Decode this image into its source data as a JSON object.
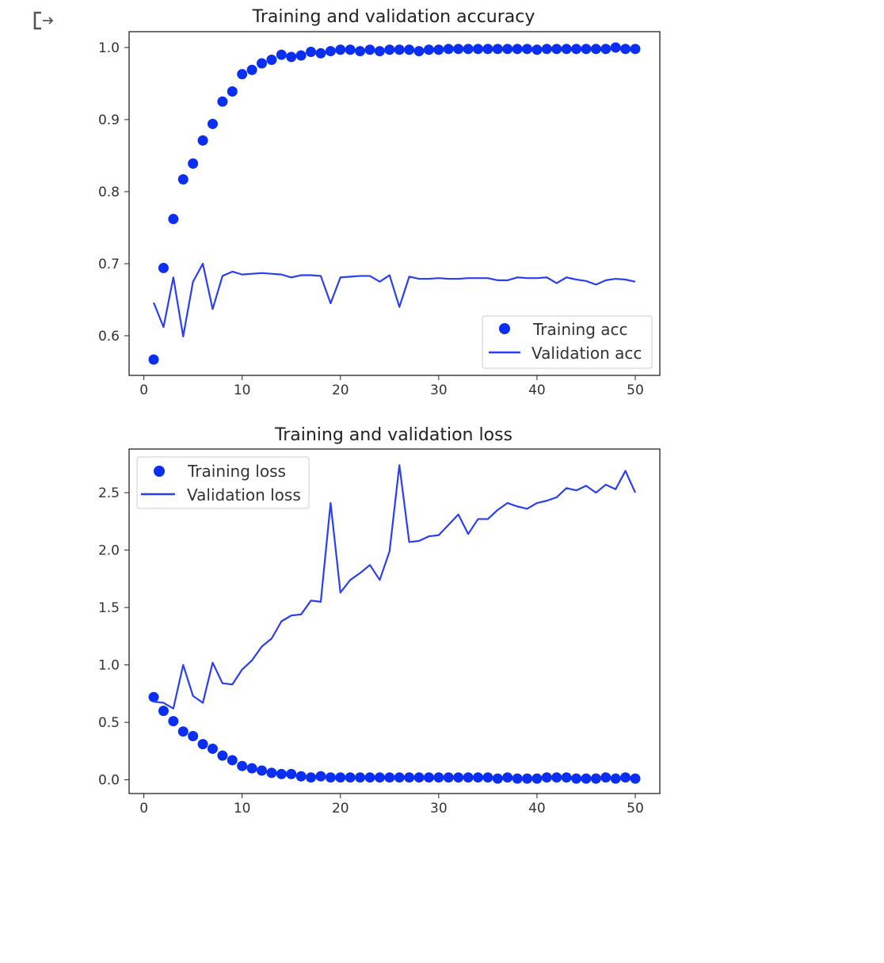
{
  "output_icon": "output-arrow-icon",
  "colors": {
    "marker": "#0a2ff0",
    "line": "#2b3ff2",
    "axes": "#222222"
  },
  "chart_data": [
    {
      "type": "scatter",
      "title": "Training and validation accuracy",
      "xlabel": "",
      "ylabel": "",
      "xlim": [
        -1.5,
        52.5
      ],
      "ylim": [
        0.545,
        1.022
      ],
      "xticks": [
        0,
        10,
        20,
        30,
        40,
        50
      ],
      "yticks": [
        0.6,
        0.7,
        0.8,
        0.9,
        1.0
      ],
      "ytick_labels": [
        "0.6",
        "0.7",
        "0.8",
        "0.9",
        "1.0"
      ],
      "legend_position": "lower-right",
      "x": [
        1,
        2,
        3,
        4,
        5,
        6,
        7,
        8,
        9,
        10,
        11,
        12,
        13,
        14,
        15,
        16,
        17,
        18,
        19,
        20,
        21,
        22,
        23,
        24,
        25,
        26,
        27,
        28,
        29,
        30,
        31,
        32,
        33,
        34,
        35,
        36,
        37,
        38,
        39,
        40,
        41,
        42,
        43,
        44,
        45,
        46,
        47,
        48,
        49,
        50
      ],
      "series": [
        {
          "name": "Training acc",
          "style": "markers",
          "values": [
            0.567,
            0.694,
            0.762,
            0.817,
            0.839,
            0.871,
            0.894,
            0.925,
            0.939,
            0.963,
            0.969,
            0.978,
            0.983,
            0.99,
            0.987,
            0.989,
            0.994,
            0.992,
            0.995,
            0.997,
            0.997,
            0.995,
            0.997,
            0.995,
            0.997,
            0.997,
            0.997,
            0.995,
            0.997,
            0.997,
            0.998,
            0.998,
            0.998,
            0.998,
            0.998,
            0.998,
            0.998,
            0.998,
            0.998,
            0.997,
            0.998,
            0.998,
            0.998,
            0.998,
            0.998,
            0.998,
            0.998,
            1.0,
            0.998,
            0.998
          ]
        },
        {
          "name": "Validation acc",
          "style": "line",
          "values": [
            0.646,
            0.612,
            0.681,
            0.599,
            0.675,
            0.7,
            0.637,
            0.683,
            0.689,
            0.685,
            0.686,
            0.687,
            0.686,
            0.685,
            0.681,
            0.684,
            0.684,
            0.683,
            0.645,
            0.681,
            0.682,
            0.683,
            0.683,
            0.675,
            0.684,
            0.64,
            0.682,
            0.679,
            0.679,
            0.68,
            0.679,
            0.679,
            0.68,
            0.68,
            0.68,
            0.677,
            0.677,
            0.681,
            0.68,
            0.68,
            0.681,
            0.673,
            0.681,
            0.678,
            0.676,
            0.671,
            0.677,
            0.679,
            0.678,
            0.675
          ]
        }
      ]
    },
    {
      "type": "scatter",
      "title": "Training and validation loss",
      "xlabel": "",
      "ylabel": "",
      "xlim": [
        -1.5,
        52.5
      ],
      "ylim": [
        -0.12,
        2.88
      ],
      "xticks": [
        0,
        10,
        20,
        30,
        40,
        50
      ],
      "yticks": [
        0.0,
        0.5,
        1.0,
        1.5,
        2.0,
        2.5
      ],
      "ytick_labels": [
        "0.0",
        "0.5",
        "1.0",
        "1.5",
        "2.0",
        "2.5"
      ],
      "legend_position": "upper-left",
      "x": [
        1,
        2,
        3,
        4,
        5,
        6,
        7,
        8,
        9,
        10,
        11,
        12,
        13,
        14,
        15,
        16,
        17,
        18,
        19,
        20,
        21,
        22,
        23,
        24,
        25,
        26,
        27,
        28,
        29,
        30,
        31,
        32,
        33,
        34,
        35,
        36,
        37,
        38,
        39,
        40,
        41,
        42,
        43,
        44,
        45,
        46,
        47,
        48,
        49,
        50
      ],
      "series": [
        {
          "name": "Training loss",
          "style": "markers",
          "values": [
            0.72,
            0.6,
            0.51,
            0.42,
            0.38,
            0.31,
            0.27,
            0.21,
            0.17,
            0.12,
            0.1,
            0.08,
            0.06,
            0.05,
            0.05,
            0.03,
            0.02,
            0.03,
            0.02,
            0.02,
            0.02,
            0.02,
            0.02,
            0.02,
            0.02,
            0.02,
            0.02,
            0.02,
            0.02,
            0.02,
            0.02,
            0.02,
            0.02,
            0.02,
            0.02,
            0.01,
            0.02,
            0.01,
            0.01,
            0.01,
            0.02,
            0.02,
            0.02,
            0.01,
            0.01,
            0.01,
            0.02,
            0.01,
            0.02,
            0.01
          ]
        },
        {
          "name": "Validation loss",
          "style": "line",
          "values": [
            0.68,
            0.67,
            0.62,
            1.0,
            0.73,
            0.67,
            1.02,
            0.84,
            0.83,
            0.96,
            1.04,
            1.16,
            1.23,
            1.38,
            1.43,
            1.44,
            1.56,
            1.55,
            2.41,
            1.63,
            1.74,
            1.8,
            1.87,
            1.74,
            1.99,
            2.74,
            2.07,
            2.08,
            2.12,
            2.13,
            2.22,
            2.31,
            2.14,
            2.27,
            2.27,
            2.35,
            2.41,
            2.38,
            2.36,
            2.41,
            2.43,
            2.46,
            2.54,
            2.52,
            2.56,
            2.5,
            2.57,
            2.53,
            2.69,
            2.5
          ]
        }
      ]
    }
  ]
}
